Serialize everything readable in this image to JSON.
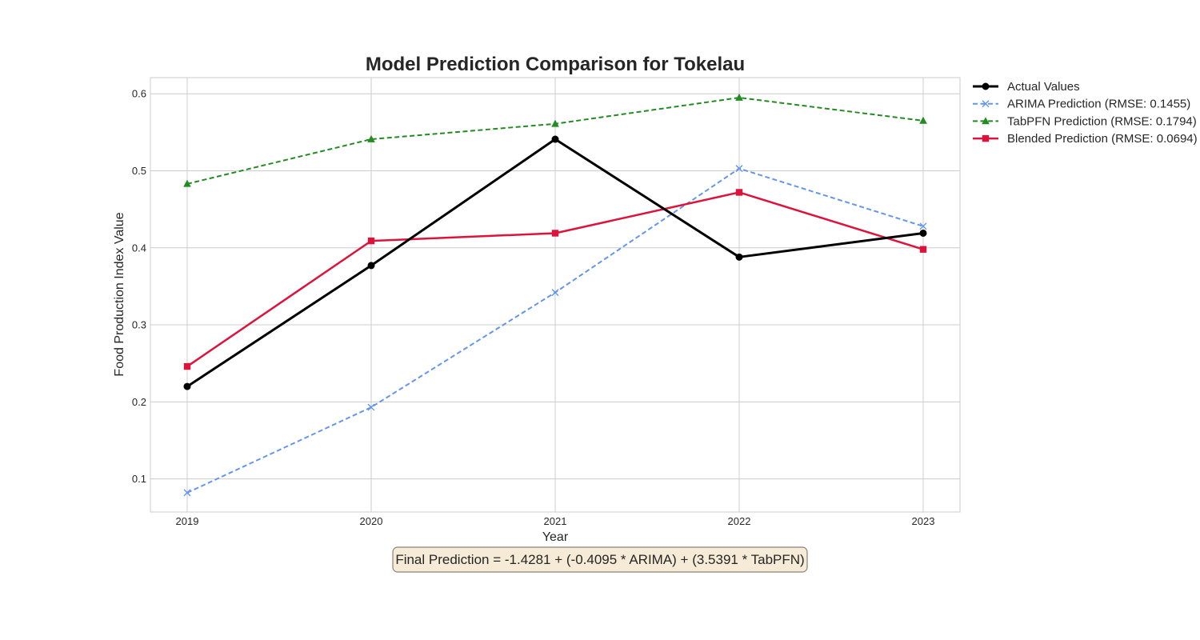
{
  "chart_data": {
    "type": "line",
    "title": "Model Prediction Comparison for Tokelau",
    "xlabel": "Year",
    "ylabel": "Food Production Index Value",
    "categories": [
      "2019",
      "2020",
      "2021",
      "2022",
      "2023"
    ],
    "ylim": [
      0.057,
      0.621
    ],
    "yticks": [
      "0.1",
      "0.2",
      "0.3",
      "0.4",
      "0.5",
      "0.6"
    ],
    "grid": true,
    "legend_position": "outside-top-right",
    "series": [
      {
        "name": "Actual Values",
        "values": [
          0.22,
          0.377,
          0.541,
          0.388,
          0.419
        ],
        "color": "#000000",
        "style": "solid",
        "marker": "circle",
        "width": 3
      },
      {
        "name": "ARIMA Prediction (RMSE: 0.1455)",
        "values": [
          0.082,
          0.193,
          0.342,
          0.503,
          0.428
        ],
        "color": "#6495ed",
        "style": "dashed",
        "marker": "x",
        "width": 2
      },
      {
        "name": "TabPFN Prediction (RMSE: 0.1794)",
        "values": [
          0.483,
          0.541,
          0.561,
          0.595,
          0.565
        ],
        "color": "#228b22",
        "style": "dashed",
        "marker": "triangle",
        "width": 2
      },
      {
        "name": "Blended Prediction (RMSE: 0.0694)",
        "values": [
          0.246,
          0.409,
          0.419,
          0.472,
          0.398
        ],
        "color": "#dc143c",
        "style": "solid",
        "marker": "square",
        "width": 2.5
      }
    ],
    "annotation": "Final Prediction = -1.4281 + (-0.4095 * ARIMA) + (3.5391 * TabPFN)"
  }
}
